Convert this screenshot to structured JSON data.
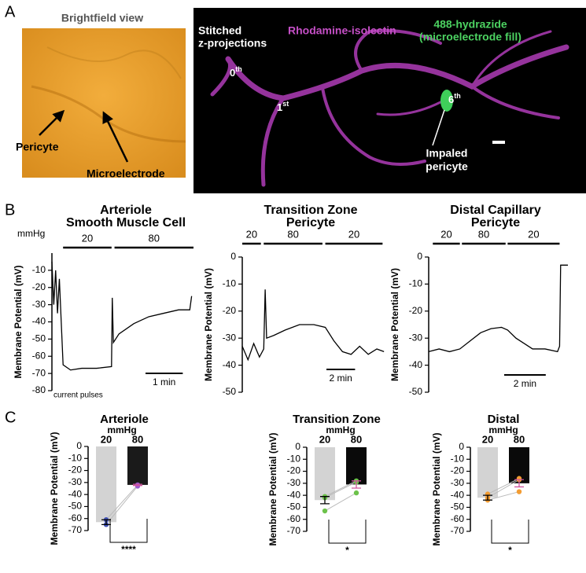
{
  "panel_labels": [
    "A",
    "B",
    "C"
  ],
  "panel_a": {
    "brightfield_title": "Brightfield view",
    "pointers": [
      "Pericyte",
      "Microelectrode"
    ],
    "projection": [
      "Stitched",
      "z-projections"
    ],
    "stain_1": "Rhodamine-isolectin",
    "stain_2": [
      "488-hydrazide",
      "(microelectrode fill)"
    ],
    "orders": [
      {
        "base": "0",
        "sup": "th"
      },
      {
        "base": "1",
        "sup": "st"
      },
      {
        "base": "6",
        "sup": "th"
      }
    ],
    "impaled": [
      "Impaled",
      "pericyte"
    ]
  },
  "chart_data": [
    {
      "type": "line",
      "title": [
        "Arteriole",
        "Smooth Muscle Cell"
      ],
      "ylabel": "Membrane Potential (mV)",
      "ylim": [
        -80,
        0
      ],
      "yticks": [
        -80,
        -70,
        -60,
        -50,
        -40,
        -30,
        -20,
        -10
      ],
      "xlim": [
        0,
        3.8
      ],
      "color": "#000000",
      "x": [
        0,
        0.05,
        0.1,
        0.15,
        0.2,
        0.25,
        0.3,
        0.5,
        0.8,
        1.2,
        1.6,
        1.62,
        1.65,
        1.8,
        2.2,
        2.6,
        3.0,
        3.4,
        3.7,
        3.75
      ],
      "values": [
        -5,
        -30,
        -10,
        -35,
        -15,
        -40,
        -65,
        -68,
        -67,
        -67,
        -66,
        -26,
        -52,
        -47,
        -41,
        -37,
        -35,
        -33,
        -33,
        -25
      ],
      "pressure_unit": "mmHg",
      "pressure": [
        {
          "label": "20",
          "start": 0.3,
          "end": 1.6
        },
        {
          "label": "80",
          "start": 1.68,
          "end": 3.8
        }
      ],
      "scale_bar": {
        "label": "1 min",
        "length": 1
      },
      "annotation": "current pulses"
    },
    {
      "type": "line",
      "title": [
        "Transition Zone",
        "Pericyte"
      ],
      "ylabel": "Membrane Potential (mV)",
      "ylim": [
        -50,
        0
      ],
      "yticks": [
        -50,
        -40,
        -30,
        -20,
        -10,
        0
      ],
      "xlim": [
        0,
        10
      ],
      "color": "#000000",
      "x": [
        0,
        0.4,
        0.8,
        1.2,
        1.5,
        1.6,
        1.7,
        2.2,
        3,
        4,
        5,
        5.8,
        6.4,
        7,
        7.6,
        8.2,
        8.8,
        9.4,
        9.9
      ],
      "values": [
        -33,
        -38,
        -32,
        -37,
        -34,
        -12,
        -30,
        -29,
        -27,
        -25,
        -25,
        -26,
        -31,
        -35,
        -36,
        -33,
        -36,
        -34,
        -35
      ],
      "pressure": [
        {
          "label": "20",
          "start": 0,
          "end": 1.3
        },
        {
          "label": "80",
          "start": 1.5,
          "end": 5.6
        },
        {
          "label": "20",
          "start": 5.8,
          "end": 9.8
        }
      ],
      "scale_bar": {
        "label": "2 min",
        "length": 2
      }
    },
    {
      "type": "line",
      "title": [
        "Distal Capillary",
        "Pericyte"
      ],
      "ylabel": "Membrane Potential (mV)",
      "ylim": [
        -50,
        0
      ],
      "yticks": [
        -50,
        -40,
        -30,
        -20,
        -10,
        0
      ],
      "xlim": [
        0,
        6.7
      ],
      "color": "#000000",
      "x": [
        0,
        0.5,
        1,
        1.5,
        2,
        2.5,
        3,
        3.5,
        3.8,
        4.2,
        4.6,
        5,
        5.6,
        6.2,
        6.3,
        6.35,
        6.7
      ],
      "values": [
        -35,
        -34,
        -35,
        -34,
        -31,
        -28,
        -26.5,
        -26,
        -27,
        -30,
        -32,
        -34,
        -34,
        -35,
        -33,
        -3,
        -3
      ],
      "pressure": [
        {
          "label": "20",
          "start": 0.2,
          "end": 1.5
        },
        {
          "label": "80",
          "start": 1.6,
          "end": 3.7
        },
        {
          "label": "20",
          "start": 3.8,
          "end": 6.3
        }
      ],
      "scale_bar": {
        "label": "2 min",
        "length": 2
      }
    },
    {
      "type": "bar",
      "title": "Arteriole",
      "unit": "mmHg",
      "ylabel": "Membrane Potential (mV)",
      "categories": [
        "20",
        "80"
      ],
      "values": [
        -63,
        -32
      ],
      "errors": [
        2,
        0.5
      ],
      "colors": [
        "#d3d3d3",
        "#1a1a1a"
      ],
      "points": [
        [
          -61,
          -65
        ],
        [
          -32,
          -33
        ]
      ],
      "point_color": [
        "#3f51b5",
        "#9b59d0"
      ],
      "ylim": [
        -70,
        0
      ],
      "yticks": [
        0,
        -10,
        -20,
        -30,
        -40,
        -50,
        -60,
        -70
      ],
      "significance": "****"
    },
    {
      "type": "bar",
      "title": "Transition Zone",
      "unit": "mmHg",
      "ylabel": "Membrane Potential (mV)",
      "categories": [
        "20",
        "80"
      ],
      "values": [
        -44,
        -31
      ],
      "errors": [
        3,
        3
      ],
      "colors": [
        "#d3d3d3",
        "#0a0a0a"
      ],
      "points": [
        [
          -41,
          -42,
          -53
        ],
        [
          -28,
          -29,
          -38
        ]
      ],
      "point_color": [
        "#6cc24a",
        "#6cc24a"
      ],
      "ylim": [
        -70,
        0
      ],
      "yticks": [
        0,
        -10,
        -20,
        -30,
        -40,
        -50,
        -60,
        -70
      ],
      "significance": "*"
    },
    {
      "type": "bar",
      "title": "Distal",
      "unit": "mmHg",
      "ylabel": "Membrane Potential (mV)",
      "categories": [
        "20",
        "80"
      ],
      "values": [
        -42,
        -30
      ],
      "errors": [
        2,
        3
      ],
      "colors": [
        "#d3d3d3",
        "#0a0a0a"
      ],
      "points": [
        [
          -39,
          -42,
          -44
        ],
        [
          -26,
          -27,
          -37
        ]
      ],
      "point_color": [
        "#f39c32",
        "#f39c32"
      ],
      "ylim": [
        -70,
        0
      ],
      "yticks": [
        0,
        -10,
        -20,
        -30,
        -40,
        -50,
        -60,
        -70
      ],
      "significance": "*"
    }
  ]
}
